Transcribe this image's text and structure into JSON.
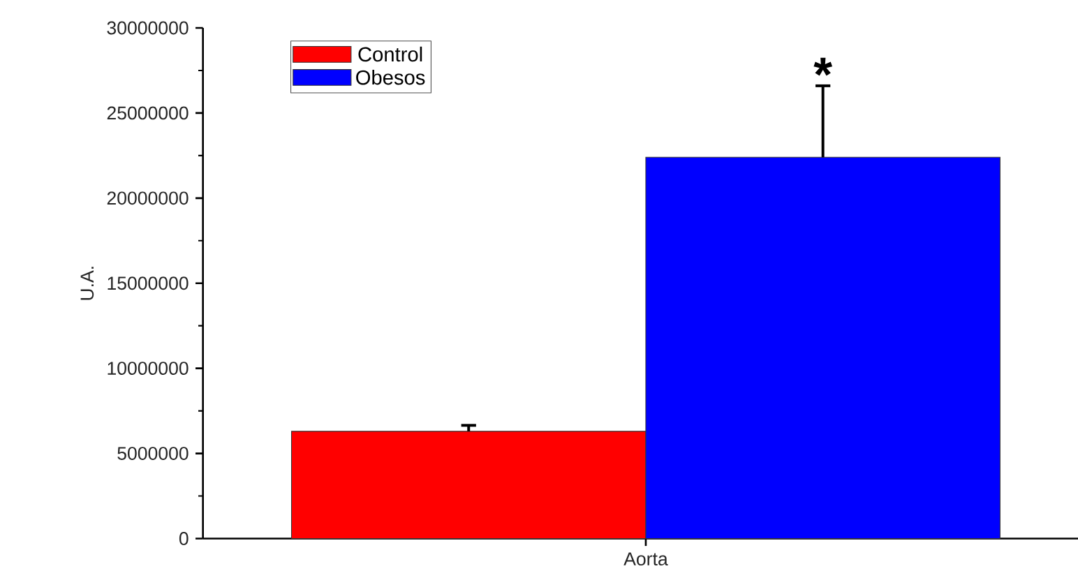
{
  "chart_data": {
    "type": "bar",
    "ylabel": "U.A.",
    "categories": [
      "Aorta"
    ],
    "series": [
      {
        "name": "Control",
        "color": "#ff0000",
        "values": [
          6300000
        ],
        "errors": [
          350000
        ]
      },
      {
        "name": "Obesos",
        "color": "#0000ff",
        "values": [
          22400000
        ],
        "errors": [
          4200000
        ]
      }
    ],
    "ylim": [
      0,
      30000000
    ],
    "yticks": [
      0,
      5000000,
      10000000,
      15000000,
      20000000,
      25000000,
      30000000
    ],
    "annotations": [
      "*"
    ],
    "legend": "top left",
    "grid": false
  }
}
